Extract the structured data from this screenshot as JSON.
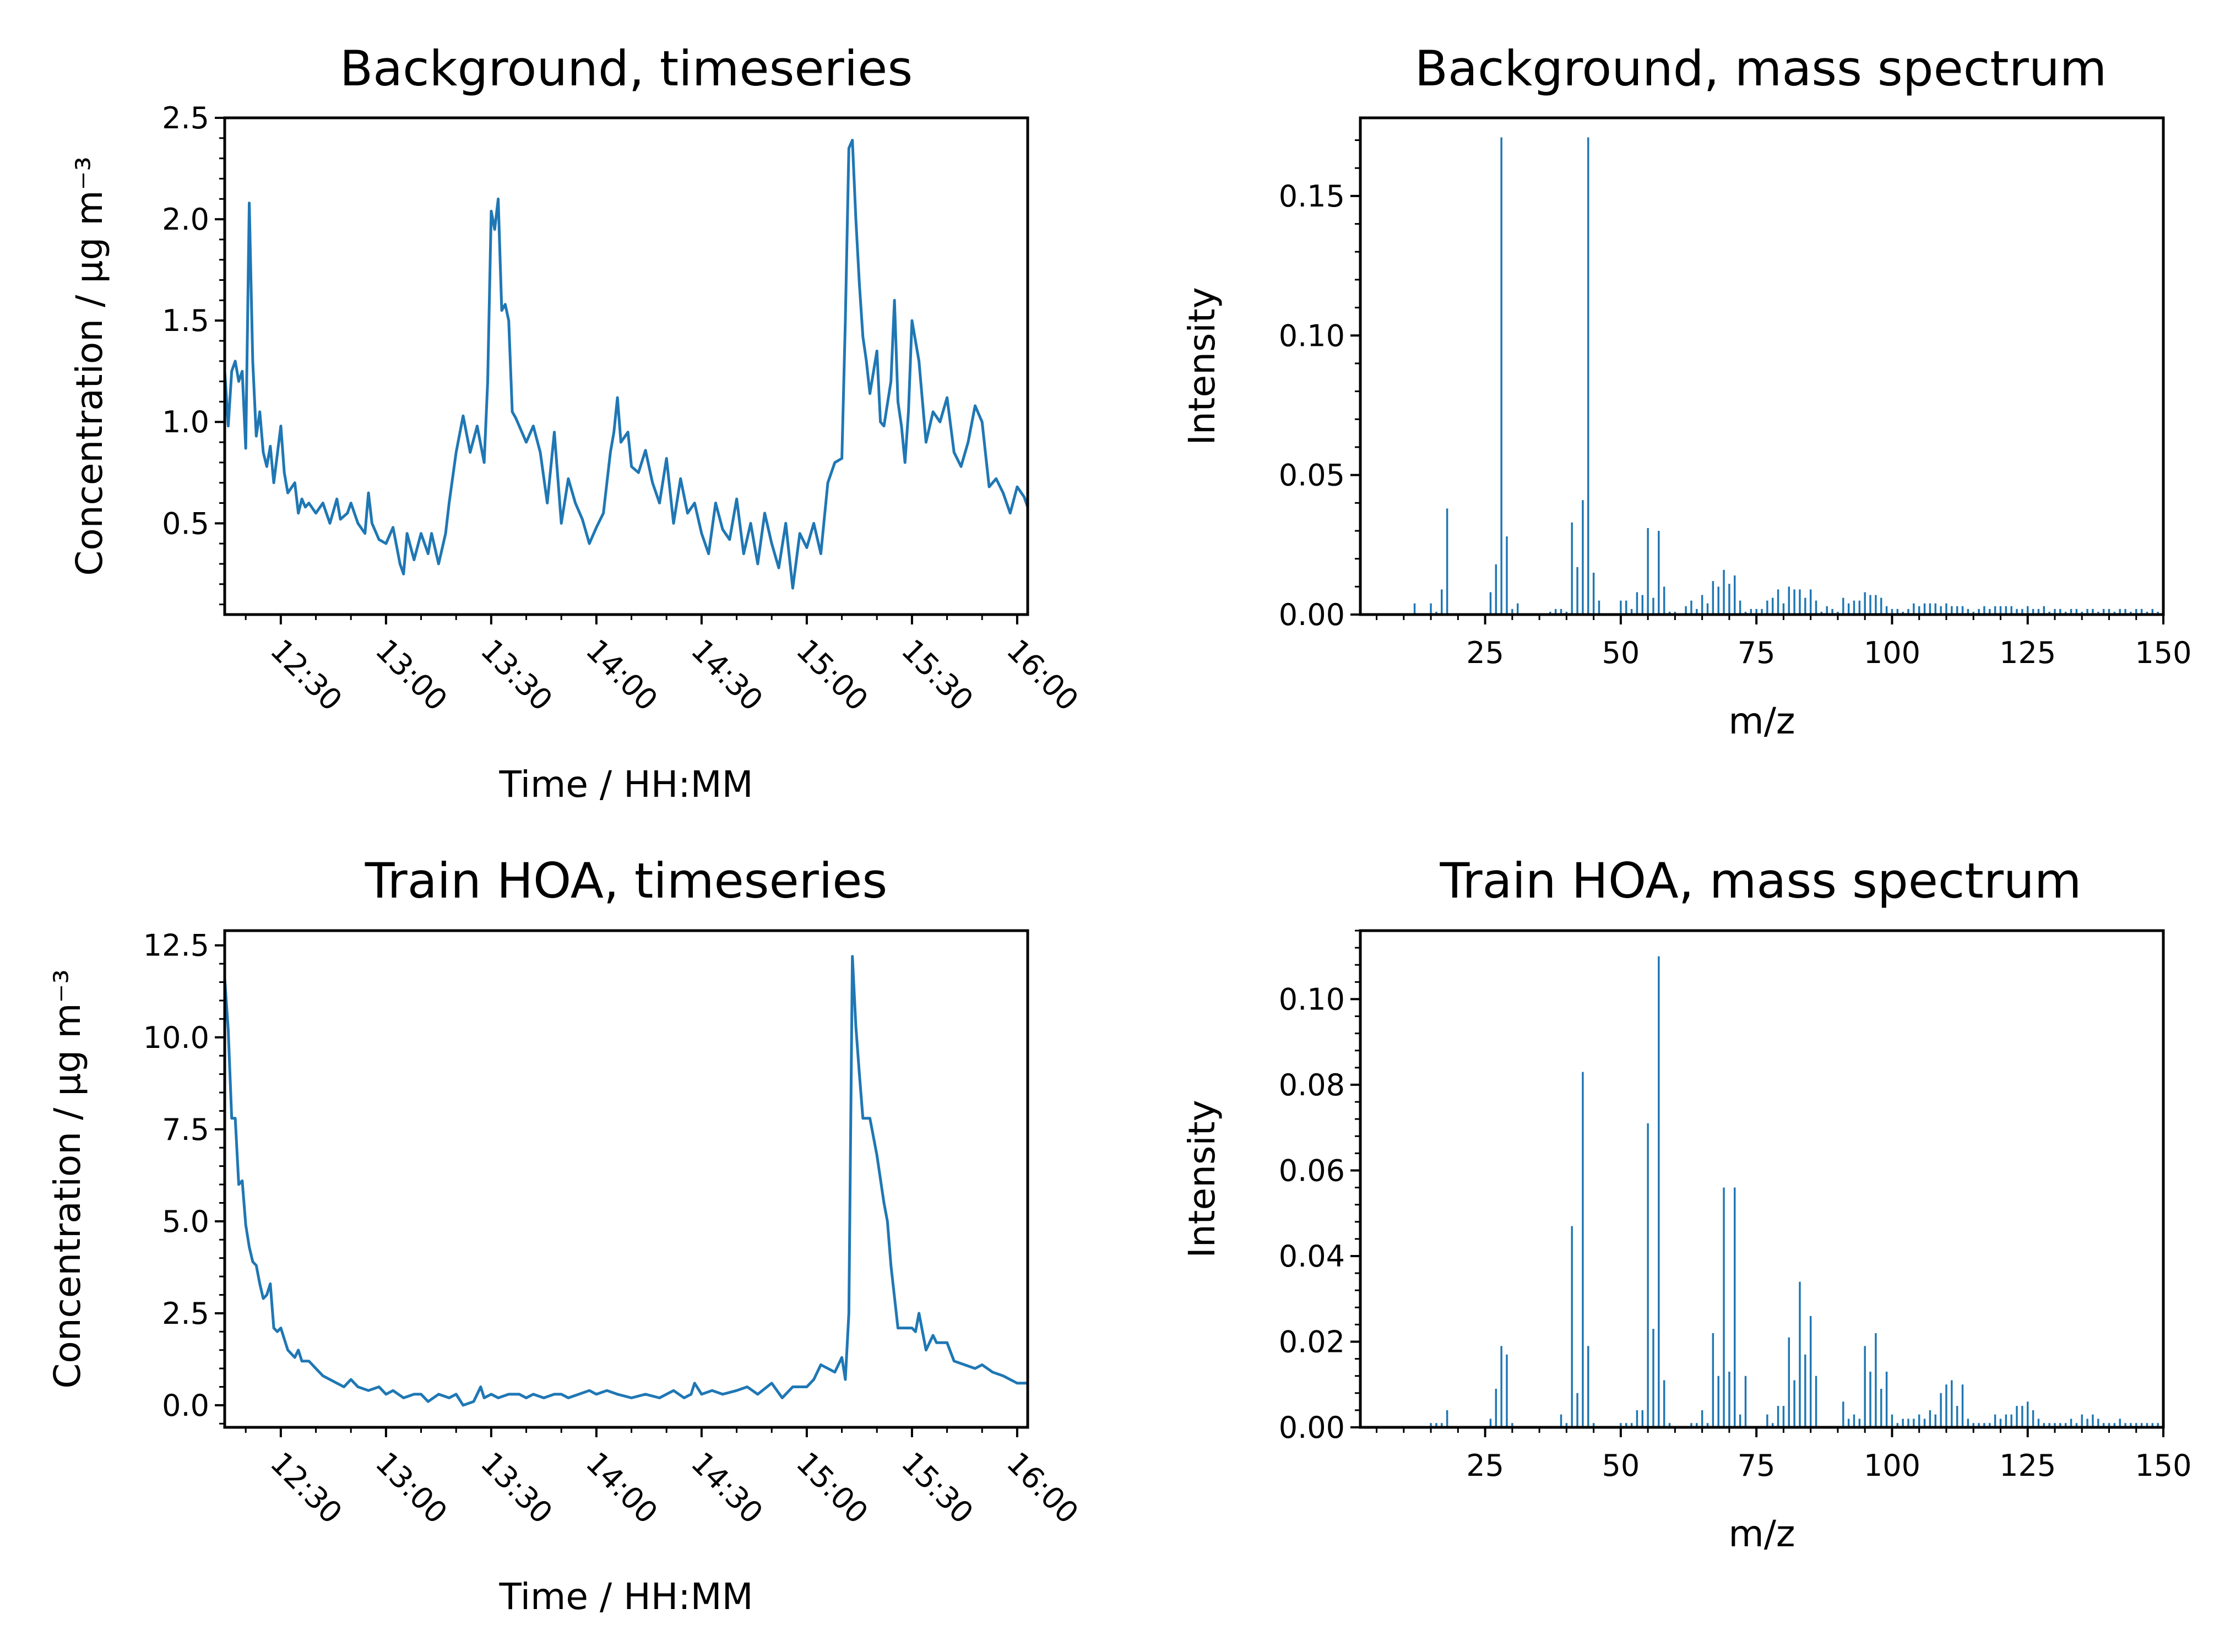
{
  "chart_data": [
    {
      "id": "bg_ts",
      "type": "line",
      "title": "Background, timeseries",
      "xlabel": "Time / HH:MM",
      "ylabel": "Concentration / μg m⁻³",
      "x_tick_labels": [
        "12:30",
        "13:00",
        "13:30",
        "14:00",
        "14:30",
        "15:00",
        "15:30",
        "16:00"
      ],
      "y_tick_labels": [
        "0.5",
        "1.0",
        "1.5",
        "2.0",
        "2.5"
      ],
      "xlim": [
        "12:14",
        "16:03"
      ],
      "ylim": [
        0.05,
        2.5
      ],
      "grid": false,
      "color": "#1f77b4",
      "series": [
        {
          "x": [
            "12:14",
            "12:15",
            "12:16",
            "12:17",
            "12:18",
            "12:19",
            "12:20",
            "12:21",
            "12:22",
            "12:23",
            "12:24",
            "12:25",
            "12:26",
            "12:27",
            "12:28",
            "12:30",
            "12:31",
            "12:32",
            "12:34",
            "12:35",
            "12:36",
            "12:37",
            "12:38",
            "12:40",
            "12:42",
            "12:44",
            "12:46",
            "12:47",
            "12:49",
            "12:50",
            "12:52",
            "12:54",
            "12:55",
            "12:56",
            "12:58",
            "13:00",
            "13:02",
            "13:04",
            "13:05",
            "13:06",
            "13:08",
            "13:10",
            "13:12",
            "13:13",
            "13:15",
            "13:17",
            "13:18",
            "13:20",
            "13:22",
            "13:24",
            "13:26",
            "13:28",
            "13:29",
            "13:30",
            "13:31",
            "13:32",
            "13:33",
            "13:34",
            "13:35",
            "13:36",
            "13:37",
            "13:38",
            "13:40",
            "13:42",
            "13:44",
            "13:46",
            "13:48",
            "13:50",
            "13:52",
            "13:54",
            "13:56",
            "13:58",
            "14:00",
            "14:02",
            "14:04",
            "14:05",
            "14:06",
            "14:07",
            "14:09",
            "14:10",
            "14:12",
            "14:14",
            "14:16",
            "14:18",
            "14:20",
            "14:22",
            "14:24",
            "14:26",
            "14:28",
            "14:30",
            "14:32",
            "14:34",
            "14:36",
            "14:38",
            "14:40",
            "14:42",
            "14:44",
            "14:46",
            "14:48",
            "14:50",
            "14:52",
            "14:54",
            "14:56",
            "14:58",
            "15:00",
            "15:02",
            "15:04",
            "15:06",
            "15:08",
            "15:10",
            "15:11",
            "15:12",
            "15:13",
            "15:14",
            "15:15",
            "15:16",
            "15:17",
            "15:18",
            "15:20",
            "15:21",
            "15:22",
            "15:24",
            "15:25",
            "15:26",
            "15:27",
            "15:28",
            "15:29",
            "15:30",
            "15:32",
            "15:34",
            "15:36",
            "15:38",
            "15:40",
            "15:42",
            "15:44",
            "15:46",
            "15:48",
            "15:50",
            "15:52",
            "15:54",
            "15:56",
            "15:58",
            "16:00",
            "16:02",
            "16:03"
          ],
          "y": [
            1.25,
            0.98,
            1.25,
            1.3,
            1.2,
            1.25,
            0.87,
            2.08,
            1.3,
            0.93,
            1.05,
            0.85,
            0.78,
            0.88,
            0.7,
            0.98,
            0.75,
            0.65,
            0.7,
            0.55,
            0.62,
            0.58,
            0.6,
            0.55,
            0.6,
            0.5,
            0.62,
            0.52,
            0.55,
            0.6,
            0.5,
            0.45,
            0.65,
            0.5,
            0.42,
            0.4,
            0.48,
            0.3,
            0.25,
            0.45,
            0.32,
            0.45,
            0.35,
            0.45,
            0.3,
            0.45,
            0.6,
            0.85,
            1.03,
            0.85,
            0.98,
            0.8,
            1.2,
            2.04,
            1.95,
            2.1,
            1.55,
            1.58,
            1.5,
            1.05,
            1.02,
            0.98,
            0.9,
            0.98,
            0.85,
            0.6,
            0.95,
            0.5,
            0.72,
            0.6,
            0.52,
            0.4,
            0.48,
            0.55,
            0.85,
            0.95,
            1.12,
            0.9,
            0.95,
            0.78,
            0.75,
            0.86,
            0.7,
            0.6,
            0.82,
            0.5,
            0.72,
            0.55,
            0.6,
            0.45,
            0.35,
            0.6,
            0.47,
            0.42,
            0.62,
            0.35,
            0.5,
            0.3,
            0.55,
            0.4,
            0.28,
            0.5,
            0.18,
            0.45,
            0.38,
            0.5,
            0.35,
            0.7,
            0.8,
            0.82,
            1.5,
            2.35,
            2.39,
            2.0,
            1.68,
            1.42,
            1.3,
            1.14,
            1.35,
            1.0,
            0.98,
            1.2,
            1.6,
            1.1,
            0.98,
            0.8,
            1.05,
            1.5,
            1.3,
            0.9,
            1.05,
            1.0,
            1.12,
            0.85,
            0.78,
            0.9,
            1.08,
            1.0,
            0.68,
            0.72,
            0.65,
            0.55,
            0.68,
            0.63,
            0.58
          ]
        }
      ]
    },
    {
      "id": "bg_ms",
      "type": "bar",
      "title": "Background, mass spectrum",
      "xlabel": "m/z",
      "ylabel": "Intensity",
      "x_tick_labels": [
        "25",
        "50",
        "75",
        "100",
        "125",
        "150"
      ],
      "y_tick_labels": [
        "0.00",
        "0.05",
        "0.10",
        "0.15"
      ],
      "xlim": [
        2,
        150
      ],
      "ylim": [
        0,
        0.178
      ],
      "grid": false,
      "color": "#1f77b4",
      "mz": [
        12,
        15,
        16,
        17,
        18,
        26,
        27,
        28,
        29,
        30,
        31,
        37,
        38,
        39,
        40,
        41,
        42,
        43,
        44,
        45,
        46,
        50,
        51,
        52,
        53,
        54,
        55,
        56,
        57,
        58,
        59,
        60,
        62,
        63,
        64,
        65,
        66,
        67,
        68,
        69,
        70,
        71,
        72,
        73,
        74,
        75,
        76,
        77,
        78,
        79,
        80,
        81,
        82,
        83,
        84,
        85,
        86,
        87,
        88,
        89,
        90,
        91,
        92,
        93,
        94,
        95,
        96,
        97,
        98,
        99,
        100,
        101,
        102,
        103,
        104,
        105,
        106,
        107,
        108,
        109,
        110,
        111,
        112,
        113,
        114,
        115,
        116,
        117,
        118,
        119,
        120,
        121,
        122,
        123,
        124,
        125,
        126,
        127,
        128,
        129,
        130,
        131,
        132,
        133,
        134,
        135,
        136,
        137,
        138,
        139,
        140,
        141,
        142,
        143,
        144,
        145,
        146,
        147,
        148,
        149,
        150
      ],
      "values": [
        0.004,
        0.004,
        0.001,
        0.009,
        0.038,
        0.008,
        0.018,
        0.171,
        0.028,
        0.002,
        0.004,
        0.001,
        0.002,
        0.002,
        0.001,
        0.033,
        0.017,
        0.041,
        0.171,
        0.015,
        0.005,
        0.005,
        0.005,
        0.002,
        0.008,
        0.007,
        0.031,
        0.006,
        0.03,
        0.01,
        0.001,
        0.001,
        0.003,
        0.005,
        0.002,
        0.007,
        0.004,
        0.012,
        0.01,
        0.016,
        0.011,
        0.014,
        0.005,
        0.001,
        0.002,
        0.002,
        0.002,
        0.005,
        0.006,
        0.009,
        0.004,
        0.01,
        0.009,
        0.009,
        0.006,
        0.009,
        0.005,
        0.001,
        0.003,
        0.002,
        0.001,
        0.006,
        0.004,
        0.005,
        0.005,
        0.008,
        0.007,
        0.007,
        0.006,
        0.003,
        0.002,
        0.002,
        0.001,
        0.002,
        0.004,
        0.003,
        0.004,
        0.004,
        0.004,
        0.003,
        0.004,
        0.003,
        0.003,
        0.003,
        0.002,
        0.001,
        0.002,
        0.003,
        0.002,
        0.003,
        0.003,
        0.003,
        0.003,
        0.002,
        0.002,
        0.003,
        0.002,
        0.002,
        0.003,
        0.001,
        0.002,
        0.002,
        0.001,
        0.002,
        0.002,
        0.001,
        0.002,
        0.002,
        0.001,
        0.002,
        0.002,
        0.001,
        0.002,
        0.002,
        0.001,
        0.002,
        0.002,
        0.001,
        0.002,
        0.001,
        0.002
      ]
    },
    {
      "id": "hoa_ts",
      "type": "line",
      "title": "Train HOA, timeseries",
      "xlabel": "Time / HH:MM",
      "ylabel": "Concentration / μg m⁻³",
      "x_tick_labels": [
        "12:30",
        "13:00",
        "13:30",
        "14:00",
        "14:30",
        "15:00",
        "15:30",
        "16:00"
      ],
      "y_tick_labels": [
        "0.0",
        "2.5",
        "5.0",
        "7.5",
        "10.0",
        "12.5"
      ],
      "xlim": [
        "12:14",
        "16:03"
      ],
      "ylim": [
        -0.6,
        12.9
      ],
      "grid": false,
      "color": "#1f77b4",
      "series": [
        {
          "x": [
            "12:14",
            "12:15",
            "12:16",
            "12:17",
            "12:18",
            "12:19",
            "12:20",
            "12:21",
            "12:22",
            "12:23",
            "12:24",
            "12:25",
            "12:26",
            "12:27",
            "12:28",
            "12:29",
            "12:30",
            "12:31",
            "12:32",
            "12:34",
            "12:35",
            "12:36",
            "12:38",
            "12:40",
            "12:42",
            "12:44",
            "12:46",
            "12:48",
            "12:50",
            "12:52",
            "12:55",
            "12:58",
            "13:00",
            "13:02",
            "13:05",
            "13:08",
            "13:10",
            "13:12",
            "13:15",
            "13:18",
            "13:20",
            "13:22",
            "13:25",
            "13:27",
            "13:28",
            "13:30",
            "13:32",
            "13:35",
            "13:38",
            "13:40",
            "13:42",
            "13:45",
            "13:48",
            "13:50",
            "13:52",
            "13:55",
            "13:58",
            "14:00",
            "14:03",
            "14:06",
            "14:10",
            "14:14",
            "14:18",
            "14:20",
            "14:22",
            "14:25",
            "14:27",
            "14:28",
            "14:30",
            "14:33",
            "14:36",
            "14:40",
            "14:43",
            "14:46",
            "14:50",
            "14:53",
            "14:56",
            "15:00",
            "15:02",
            "15:04",
            "15:06",
            "15:08",
            "15:10",
            "15:11",
            "15:12",
            "15:13",
            "15:14",
            "15:15",
            "15:16",
            "15:17",
            "15:18",
            "15:20",
            "15:22",
            "15:23",
            "15:24",
            "15:26",
            "15:28",
            "15:30",
            "15:31",
            "15:32",
            "15:34",
            "15:36",
            "15:37",
            "15:38",
            "15:40",
            "15:42",
            "15:45",
            "15:48",
            "15:50",
            "15:53",
            "15:56",
            "16:00",
            "16:03"
          ],
          "y": [
            11.6,
            10.2,
            7.8,
            7.8,
            6.0,
            6.1,
            4.9,
            4.3,
            3.9,
            3.8,
            3.3,
            2.9,
            3.0,
            3.3,
            2.1,
            2.0,
            2.1,
            1.8,
            1.5,
            1.3,
            1.5,
            1.2,
            1.2,
            1.0,
            0.8,
            0.7,
            0.6,
            0.5,
            0.7,
            0.5,
            0.4,
            0.5,
            0.3,
            0.4,
            0.2,
            0.3,
            0.3,
            0.1,
            0.3,
            0.2,
            0.3,
            0.0,
            0.1,
            0.5,
            0.2,
            0.3,
            0.2,
            0.3,
            0.3,
            0.2,
            0.3,
            0.2,
            0.3,
            0.3,
            0.2,
            0.3,
            0.4,
            0.3,
            0.4,
            0.3,
            0.2,
            0.3,
            0.2,
            0.3,
            0.4,
            0.2,
            0.3,
            0.6,
            0.3,
            0.4,
            0.3,
            0.4,
            0.5,
            0.3,
            0.6,
            0.2,
            0.5,
            0.5,
            0.7,
            1.1,
            1.0,
            0.9,
            1.3,
            0.7,
            2.5,
            12.2,
            10.3,
            9.0,
            7.8,
            7.8,
            7.8,
            6.8,
            5.5,
            5.0,
            3.8,
            2.1,
            2.1,
            2.1,
            2.0,
            2.5,
            1.5,
            1.9,
            1.7,
            1.7,
            1.7,
            1.2,
            1.1,
            1.0,
            1.1,
            0.9,
            0.8,
            0.6,
            0.6
          ]
        }
      ]
    },
    {
      "id": "hoa_ms",
      "type": "bar",
      "title": "Train HOA, mass spectrum",
      "xlabel": "m/z",
      "ylabel": "Intensity",
      "x_tick_labels": [
        "25",
        "50",
        "75",
        "100",
        "125",
        "150"
      ],
      "y_tick_labels": [
        "0.00",
        "0.02",
        "0.04",
        "0.06",
        "0.08",
        "0.10"
      ],
      "xlim": [
        2,
        150
      ],
      "ylim": [
        0,
        0.116
      ],
      "grid": false,
      "color": "#1f77b4",
      "mz": [
        15,
        16,
        17,
        18,
        26,
        27,
        28,
        29,
        30,
        39,
        40,
        41,
        42,
        43,
        44,
        45,
        50,
        51,
        52,
        53,
        54,
        55,
        56,
        57,
        58,
        59,
        63,
        64,
        65,
        66,
        67,
        68,
        69,
        70,
        71,
        72,
        73,
        77,
        78,
        79,
        80,
        81,
        82,
        83,
        84,
        85,
        86,
        91,
        92,
        93,
        94,
        95,
        96,
        97,
        98,
        99,
        100,
        101,
        102,
        103,
        104,
        105,
        106,
        107,
        108,
        109,
        110,
        111,
        112,
        113,
        114,
        115,
        116,
        117,
        118,
        119,
        120,
        121,
        122,
        123,
        124,
        125,
        126,
        127,
        128,
        129,
        130,
        131,
        132,
        133,
        134,
        135,
        136,
        137,
        138,
        139,
        140,
        141,
        142,
        143,
        144,
        145,
        146,
        147,
        148,
        149,
        150
      ],
      "values": [
        0.001,
        0.001,
        0.001,
        0.004,
        0.002,
        0.009,
        0.019,
        0.017,
        0.001,
        0.003,
        0.001,
        0.047,
        0.008,
        0.083,
        0.019,
        0.001,
        0.001,
        0.001,
        0.001,
        0.004,
        0.004,
        0.071,
        0.023,
        0.11,
        0.011,
        0.001,
        0.001,
        0.001,
        0.004,
        0.001,
        0.022,
        0.012,
        0.056,
        0.013,
        0.056,
        0.003,
        0.012,
        0.003,
        0.001,
        0.005,
        0.005,
        0.021,
        0.011,
        0.034,
        0.017,
        0.026,
        0.012,
        0.006,
        0.002,
        0.003,
        0.002,
        0.019,
        0.013,
        0.022,
        0.009,
        0.013,
        0.003,
        0.001,
        0.002,
        0.002,
        0.002,
        0.003,
        0.002,
        0.004,
        0.003,
        0.008,
        0.01,
        0.011,
        0.005,
        0.01,
        0.002,
        0.001,
        0.001,
        0.001,
        0.001,
        0.003,
        0.002,
        0.003,
        0.003,
        0.005,
        0.005,
        0.006,
        0.004,
        0.002,
        0.001,
        0.001,
        0.001,
        0.001,
        0.001,
        0.002,
        0.001,
        0.003,
        0.002,
        0.003,
        0.002,
        0.001,
        0.001,
        0.001,
        0.002,
        0.001,
        0.001,
        0.001,
        0.001,
        0.001,
        0.001,
        0.001,
        0.001
      ]
    }
  ]
}
